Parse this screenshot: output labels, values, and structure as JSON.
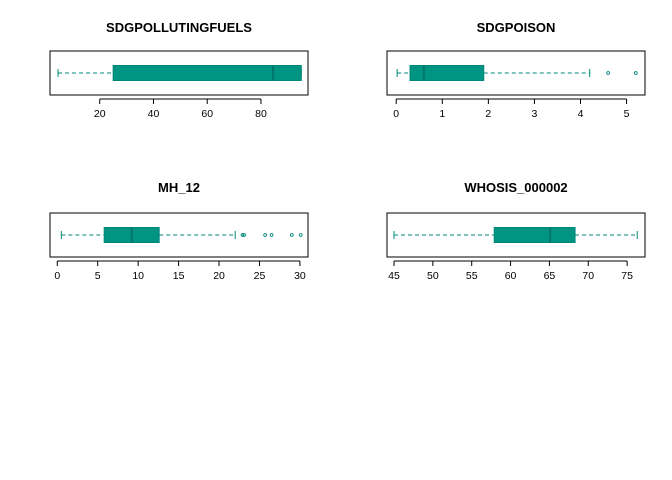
{
  "chart_data": [
    {
      "type": "boxplot",
      "orientation": "horizontal",
      "title": "SDGPOLLUTINGFUELS",
      "xlim": [
        1.5,
        97.5
      ],
      "ticks": [
        20,
        40,
        60,
        80
      ],
      "tick_labels": [
        "20",
        "40",
        "60",
        "80"
      ],
      "whisker_low": 4.5,
      "q1": 25,
      "median": 84.5,
      "q3": 95,
      "whisker_high": 95,
      "outliers": []
    },
    {
      "type": "boxplot",
      "orientation": "horizontal",
      "title": "SDGPOISON",
      "xlim": [
        -0.2,
        5.4
      ],
      "ticks": [
        0,
        1,
        2,
        3,
        4,
        5
      ],
      "tick_labels": [
        "0",
        "1",
        "2",
        "3",
        "4",
        "5"
      ],
      "whisker_low": 0.02,
      "q1": 0.3,
      "median": 0.6,
      "q3": 1.9,
      "whisker_high": 4.2,
      "outliers": [
        4.6,
        5.2
      ]
    },
    {
      "type": "boxplot",
      "orientation": "horizontal",
      "title": "MH_12",
      "xlim": [
        -0.9,
        31.0
      ],
      "ticks": [
        0,
        5,
        10,
        15,
        20,
        25,
        30
      ],
      "tick_labels": [
        "0",
        "5",
        "10",
        "15",
        "20",
        "25",
        "30"
      ],
      "whisker_low": 0.5,
      "q1": 5.8,
      "median": 9.2,
      "q3": 12.6,
      "whisker_high": 22.0,
      "outliers": [
        22.9,
        23.1,
        25.7,
        26.5,
        29.0,
        30.1
      ]
    },
    {
      "type": "boxplot",
      "orientation": "horizontal",
      "title": "WHOSIS_000002",
      "xlim": [
        44.1,
        77.3
      ],
      "ticks": [
        45,
        50,
        55,
        60,
        65,
        70,
        75
      ],
      "tick_labels": [
        "45",
        "50",
        "55",
        "60",
        "65",
        "70",
        "75"
      ],
      "whisker_low": 45,
      "q1": 57.9,
      "median": 65.1,
      "q3": 68.3,
      "whisker_high": 76.3,
      "outliers": []
    }
  ],
  "style": {
    "box_fill": "#009483",
    "line_color": "#00877a",
    "median_color": "#00766a",
    "frame_color": "#000000"
  }
}
